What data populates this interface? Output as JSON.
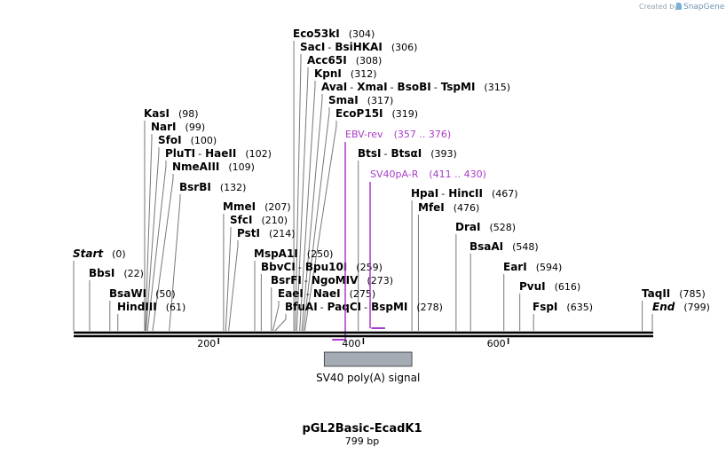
{
  "credit": {
    "text": "Created by",
    "brand": "SnapGene"
  },
  "plasmid": {
    "name": "pGL2Basic-EcadK1",
    "size_label": "799 bp",
    "length": 799
  },
  "axis": {
    "ticks": [
      {
        "label": "200",
        "pos": 200
      },
      {
        "label": "400",
        "pos": 400
      },
      {
        "label": "600",
        "pos": 600
      }
    ]
  },
  "features": [
    {
      "label": "SV40 poly(A) signal",
      "start": 346,
      "end": 467,
      "color": "#a5abb4"
    }
  ],
  "primers": [
    {
      "name": "EBV-rev",
      "range": "(357 .. 376)",
      "start": 357,
      "end": 376,
      "color": "#a83cc8"
    },
    {
      "name": "SV40pA-R",
      "range": "(411 .. 430)",
      "start": 411,
      "end": 430,
      "color": "#a83cc8"
    }
  ],
  "sites": [
    {
      "names": [
        "Start"
      ],
      "pos_label": "(0)",
      "pos": 0,
      "italic": true
    },
    {
      "names": [
        "BbsI"
      ],
      "pos_label": "(22)",
      "pos": 22
    },
    {
      "names": [
        "BsaWI"
      ],
      "pos_label": "(50)",
      "pos": 50
    },
    {
      "names": [
        "HindIII"
      ],
      "pos_label": "(61)",
      "pos": 61
    },
    {
      "names": [
        "KasI"
      ],
      "pos_label": "(98)",
      "pos": 98
    },
    {
      "names": [
        "NarI"
      ],
      "pos_label": "(99)",
      "pos": 99
    },
    {
      "names": [
        "SfoI"
      ],
      "pos_label": "(100)",
      "pos": 100
    },
    {
      "names": [
        "PluTI",
        "HaeII"
      ],
      "pos_label": "(102)",
      "pos": 102
    },
    {
      "names": [
        "NmeAIII"
      ],
      "pos_label": "(109)",
      "pos": 109
    },
    {
      "names": [
        "BsrBI"
      ],
      "pos_label": "(132)",
      "pos": 132
    },
    {
      "names": [
        "MmeI"
      ],
      "pos_label": "(207)",
      "pos": 207
    },
    {
      "names": [
        "SfcI"
      ],
      "pos_label": "(210)",
      "pos": 210
    },
    {
      "names": [
        "PstI"
      ],
      "pos_label": "(214)",
      "pos": 214
    },
    {
      "names": [
        "MspA1I"
      ],
      "pos_label": "(250)",
      "pos": 250
    },
    {
      "names": [
        "BbvCI",
        "Bpu10I"
      ],
      "pos_label": "(259)",
      "pos": 259
    },
    {
      "names": [
        "BsrFI",
        "NgoMIV"
      ],
      "pos_label": "(273)",
      "pos": 273
    },
    {
      "names": [
        "EaeI",
        "NaeI"
      ],
      "pos_label": "(275)",
      "pos": 275
    },
    {
      "names": [
        "BfuAI",
        "PaqCI",
        "BspMI"
      ],
      "pos_label": "(278)",
      "pos": 278
    },
    {
      "names": [
        "Eco53kI"
      ],
      "pos_label": "(304)",
      "pos": 304
    },
    {
      "names": [
        "SacI",
        "BsiHKAI"
      ],
      "pos_label": "(306)",
      "pos": 306
    },
    {
      "names": [
        "Acc65I"
      ],
      "pos_label": "(308)",
      "pos": 308
    },
    {
      "names": [
        "KpnI"
      ],
      "pos_label": "(312)",
      "pos": 312
    },
    {
      "names": [
        "AvaI",
        "XmaI",
        "BsoBI",
        "TspMI"
      ],
      "pos_label": "(315)",
      "pos": 315
    },
    {
      "names": [
        "SmaI"
      ],
      "pos_label": "(317)",
      "pos": 317
    },
    {
      "names": [
        "EcoP15I"
      ],
      "pos_label": "(319)",
      "pos": 319
    },
    {
      "names": [
        "BtsI",
        "BtsαI"
      ],
      "pos_label": "(393)",
      "pos": 393
    },
    {
      "names": [
        "HpaI",
        "HincII"
      ],
      "pos_label": "(467)",
      "pos": 467
    },
    {
      "names": [
        "MfeI"
      ],
      "pos_label": "(476)",
      "pos": 476
    },
    {
      "names": [
        "DraI"
      ],
      "pos_label": "(528)",
      "pos": 528
    },
    {
      "names": [
        "BsaAI"
      ],
      "pos_label": "(548)",
      "pos": 548
    },
    {
      "names": [
        "EarI"
      ],
      "pos_label": "(594)",
      "pos": 594
    },
    {
      "names": [
        "PvuI"
      ],
      "pos_label": "(616)",
      "pos": 616
    },
    {
      "names": [
        "FspI"
      ],
      "pos_label": "(635)",
      "pos": 635
    },
    {
      "names": [
        "TaqII"
      ],
      "pos_label": "(785)",
      "pos": 785
    },
    {
      "names": [
        "End"
      ],
      "pos_label": "(799)",
      "pos": 799,
      "italic": true
    }
  ]
}
